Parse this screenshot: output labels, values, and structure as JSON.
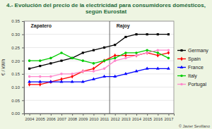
{
  "chart_data": {
    "type": "line",
    "title": "4.- Evolución del precio de la electricidad para consumidores domésticos, según Eurostat",
    "y_label": "€ / kWh",
    "source": "© Javier Sevillano",
    "annotations": [
      {
        "text": "Zapatero",
        "x": 2004
      },
      {
        "text": "Rajoy",
        "x": 2012
      }
    ],
    "x": [
      2004,
      2005,
      2006,
      2007,
      2008,
      2009,
      2010,
      2011,
      2012,
      2013,
      2014,
      2015,
      2016,
      2017
    ],
    "xlim": [
      2003.5,
      2017.5
    ],
    "xticks": [
      2004,
      2005,
      2006,
      2007,
      2008,
      2009,
      2010,
      2011,
      2012,
      2013,
      2014,
      2015,
      2016,
      2017
    ],
    "ylim": [
      0,
      0.35
    ],
    "yticks": [
      {
        "value": 0,
        "label": "0.00"
      },
      {
        "value": 0.05,
        "label": "0.05"
      },
      {
        "value": 0.1,
        "label": "0.10"
      },
      {
        "value": 0.15,
        "label": "0.15"
      },
      {
        "value": 0.2,
        "label": "0.20"
      },
      {
        "value": 0.25,
        "label": "0.25"
      },
      {
        "value": 0.3,
        "label": "0.30"
      },
      {
        "value": 0.35,
        "label": "0.35"
      }
    ],
    "grid": true,
    "legend": "right",
    "series": [
      {
        "name": "Germany",
        "color": "#000000",
        "marker": "square",
        "values": [
          0.17,
          0.18,
          0.19,
          0.2,
          0.21,
          0.23,
          0.24,
          0.25,
          0.26,
          0.29,
          0.3,
          0.3,
          0.3,
          0.3
        ]
      },
      {
        "name": "Spain",
        "color": "#ff0000",
        "marker": "diamond",
        "values": [
          0.11,
          0.11,
          0.12,
          0.13,
          0.14,
          0.16,
          0.17,
          0.2,
          0.22,
          0.22,
          0.22,
          0.23,
          0.22,
          0.23
        ]
      },
      {
        "name": "France",
        "color": "#0000ff",
        "marker": "triangle",
        "values": [
          0.12,
          0.12,
          0.12,
          0.12,
          0.12,
          0.12,
          0.13,
          0.14,
          0.14,
          0.15,
          0.16,
          0.17,
          0.17,
          0.17
        ]
      },
      {
        "name": "Italy",
        "color": "#00cc00",
        "marker": "circle",
        "values": [
          0.2,
          0.2,
          0.21,
          0.23,
          0.21,
          0.2,
          0.19,
          0.2,
          0.21,
          0.23,
          0.23,
          0.24,
          0.23,
          0.21
        ]
      },
      {
        "name": "Portugal",
        "color": "#ff88cc",
        "marker": "circle",
        "values": [
          0.14,
          0.14,
          0.14,
          0.15,
          0.15,
          0.16,
          0.16,
          0.17,
          0.2,
          0.21,
          0.22,
          0.23,
          0.24,
          0.24
        ]
      }
    ]
  }
}
